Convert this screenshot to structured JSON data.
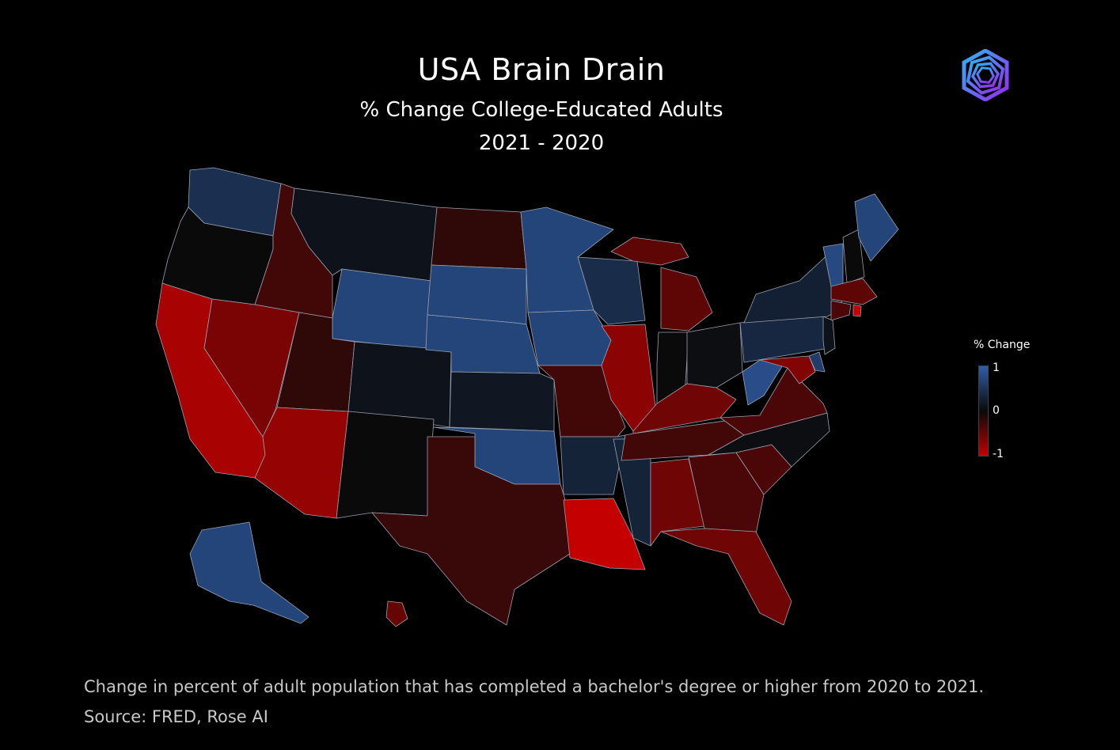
{
  "header": {
    "title": "USA Brain Drain",
    "subtitle": "% Change College-Educated Adults",
    "period": "2021 - 2020"
  },
  "legend": {
    "title": "% Change",
    "max_label": "1",
    "mid_label": "0",
    "min_label": "-1",
    "colors": {
      "high": "#2f5ea8",
      "mid": "#0a0a0a",
      "low": "#c40000"
    }
  },
  "footer": {
    "caption": "Change in percent of adult population that has completed a bachelor's degree or higher from 2020 to 2021.",
    "source": "Source: FRED, Rose AI"
  },
  "logo": {
    "icon": "hexagon-spiral-logo-icon"
  },
  "chart_data": {
    "type": "choropleth",
    "value_range": [
      -1,
      1
    ],
    "states": {
      "WA": 0.45,
      "OR": 0.0,
      "CA": -0.85,
      "ID": -0.3,
      "NV": -0.6,
      "MT": 0.1,
      "WY": 0.7,
      "UT": -0.2,
      "AZ": -0.75,
      "CO": 0.1,
      "NM": 0.0,
      "ND": -0.2,
      "SD": 0.7,
      "NE": 0.7,
      "KS": 0.15,
      "OK": 0.7,
      "TX": -0.25,
      "MN": 0.7,
      "IA": 0.7,
      "MO": -0.3,
      "AR": 0.3,
      "LA": -1.0,
      "WI": 0.4,
      "IL": -0.7,
      "MS": 0.3,
      "MI": -0.45,
      "IN": 0.0,
      "OH": 0.05,
      "KY": -0.55,
      "TN": -0.3,
      "AL": -0.55,
      "GA": -0.35,
      "FL": -0.55,
      "SC": -0.35,
      "NC": 0.05,
      "VA": -0.35,
      "WV": 0.8,
      "PA": 0.35,
      "NY": 0.25,
      "VT": 0.75,
      "NH": 0.0,
      "ME": 0.7,
      "MA": -0.45,
      "CT": -0.35,
      "RI": -1.0,
      "NJ": 0.1,
      "DE": 0.6,
      "MD": -0.65,
      "AK": 0.7,
      "HI": -0.5
    }
  }
}
